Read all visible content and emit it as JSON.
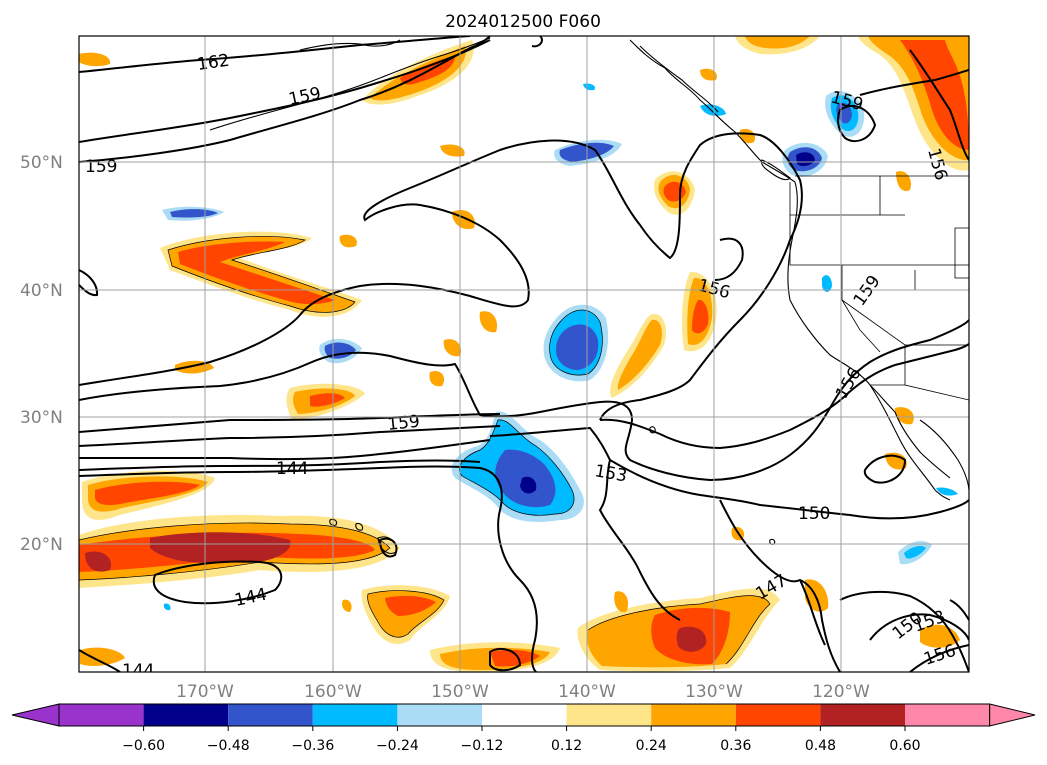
{
  "title": "2024012500 F060",
  "lat_labels": [
    "50°N",
    "40°N",
    "30°N",
    "20°N"
  ],
  "lon_labels": [
    "170°W",
    "160°W",
    "150°W",
    "140°W",
    "130°W",
    "120°W"
  ],
  "contour_labels": [
    "162",
    "159",
    "159",
    "159",
    "156",
    "159",
    "156",
    "156",
    "159",
    "153",
    "144",
    "150",
    "144",
    "147",
    "150",
    "153",
    "156",
    "144"
  ],
  "colorbar": {
    "ticks": [
      "−0.60",
      "−0.48",
      "−0.36",
      "−0.24",
      "−0.12",
      "0.12",
      "0.24",
      "0.36",
      "0.48",
      "0.60"
    ],
    "colors": [
      "#9933cc",
      "#00008b",
      "#3355cc",
      "#00bbff",
      "#aaddf5",
      "#ffffff",
      "#ffe58a",
      "#ffa500",
      "#ff4500",
      "#b22222",
      "#ff88aa"
    ]
  },
  "fill_colors": {
    "pos_light": "#ffe58a",
    "pos_mid": "#ffa500",
    "pos_strong": "#ff4500",
    "pos_max": "#b22222",
    "neg_light": "#aaddf5",
    "neg_mid": "#00bbff",
    "neg_strong": "#3355cc",
    "neg_max": "#00008b"
  }
}
